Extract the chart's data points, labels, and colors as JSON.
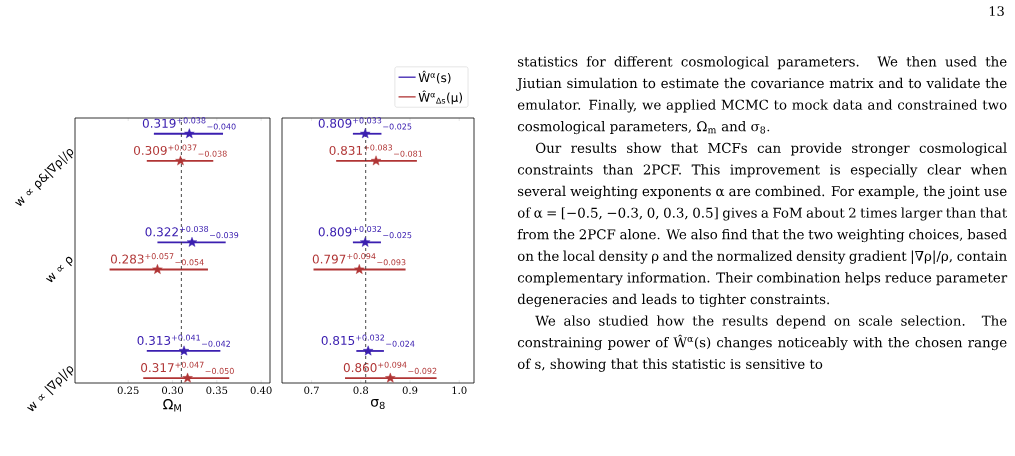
{
  "chart_data": [
    {
      "type": "scatter",
      "orientation": "horizontal",
      "categories": [
        "w ∝ ρ&|∇ρ|/ρ",
        "w ∝ ρ",
        "w ∝ |∇ρ|/ρ"
      ],
      "xlabel": "Ω$_{M}$",
      "xlim": [
        0.19,
        0.41
      ],
      "xticks": [
        0.25,
        {
          "value": 0.3,
          "label": "0.30"
        },
        0.35,
        {
          "value": 0.4,
          "label": "0.40"
        }
      ],
      "marker": "star",
      "ref_lines": [
        {
          "axis": "x",
          "value": 0.31,
          "color": "#333333",
          "line_style": "dashed"
        }
      ],
      "series": [
        {
          "color": "#3b1fb0",
          "values": [
            0.319,
            0.322,
            0.313
          ],
          "errors": [
            [
              0.279,
              0.357
            ],
            [
              0.283,
              0.36
            ],
            [
              0.271,
              0.354
            ]
          ],
          "value_labels": [
            "0.319$^{+0.038}$$_{−0.040}$",
            "0.322$^{+0.038}$$_{−0.039}$",
            "0.313$^{+0.041}$$_{−0.042}$"
          ]
        },
        {
          "color": "#b03535",
          "values": [
            0.309,
            0.283,
            0.317
          ],
          "errors": [
            [
              0.271,
              0.346
            ],
            [
              0.229,
              0.34
            ],
            [
              0.267,
              0.364
            ]
          ],
          "value_labels": [
            "0.309$^{+0.037}$$_{−0.038}$",
            "0.283$^{+0.057}$$_{−0.054}$",
            "0.317$^{+0.047}$$_{−0.050}$"
          ]
        }
      ]
    },
    {
      "type": "scatter",
      "orientation": "horizontal",
      "categories": [
        null,
        null,
        null
      ],
      "tick_labels": "x",
      "xlabel": "σ$_{8}$",
      "xlim": [
        0.64,
        1.03
      ],
      "xticks": [
        0.7,
        0.8,
        0.9,
        {
          "value": 1.0,
          "label": "1.0"
        }
      ],
      "marker": "star",
      "legend": "top right",
      "ref_lines": [
        {
          "axis": "x",
          "value": 0.81,
          "color": "#333333",
          "line_style": "dashed"
        }
      ],
      "series": [
        {
          "name": "Ŵ$^{α}$(s)",
          "color": "#3b1fb0",
          "values": [
            0.809,
            0.809,
            0.815
          ],
          "errors": [
            [
              0.784,
              0.842
            ],
            [
              0.784,
              0.841
            ],
            [
              0.791,
              0.847
            ]
          ],
          "value_labels": [
            "0.809$^{+0.033}$$_{−0.025}$",
            "0.809$^{+0.032}$$_{−0.025}$",
            "0.815$^{+0.032}$$_{−0.024}$"
          ]
        },
        {
          "name": "Ŵ$^{α}$$_{Δs}$(μ)",
          "color": "#b03535",
          "values": [
            0.831,
            0.797,
            0.86
          ],
          "errors": [
            [
              0.75,
              0.914
            ],
            [
              0.704,
              0.891
            ],
            [
              0.768,
              0.954
            ]
          ],
          "value_labels": [
            "0.831$^{+0.083}$$_{−0.081}$",
            "0.797$^{+0.094}$$_{−0.093}$",
            "0.860$^{+0.094}$$_{−0.092}$"
          ]
        }
      ]
    },
    {
      "type": "other",
      "annotations": [
        "13",
        "statistics for different cosmological parameters. We then used the Jiutian simulation to estimate the covariance matrix and to validate the emulator. Finally, we applied MCMC to mock data and constrained two cosmological parameters, Ω$_{m}$ and σ$_{8}$.",
        "Our results show that MCFs can provide stronger cosmological constraints than 2PCF. This improvement is especially clear when several weighting exponents α are combined. For example, the joint use of α = [−0.5, −0.3, 0, 0.3, 0.5] gives a FoM about 2 times larger than that from the 2PCF alone. We also find that the two weighting choices, based on the local density ρ and the normalized density gradient |∇ρ|/ρ, contain complementary information. Their combination helps reduce parameter degeneracies and leads to tighter constraints.",
        "We also studied how the results depend on scale selection. The constraining power of Ŵ$^{α}$(s) changes noticeably with the chosen range of s, showing that this statistic is sensitive to"
      ]
    }
  ]
}
